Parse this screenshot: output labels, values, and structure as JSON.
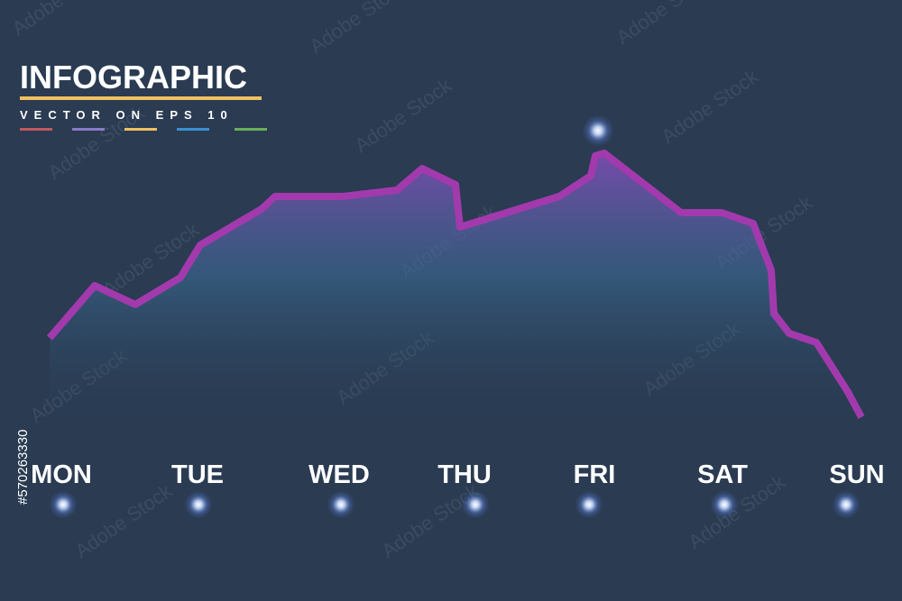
{
  "header": {
    "title": "INFOGRAPHIC",
    "subtitle": "VECTOR ON EPS 10"
  },
  "days": [
    "MON",
    "TUE",
    "WED",
    "THU",
    "FRI",
    "SAT",
    "SUN"
  ],
  "watermark": "Adobe Stock",
  "stock_id": "#570263330"
}
